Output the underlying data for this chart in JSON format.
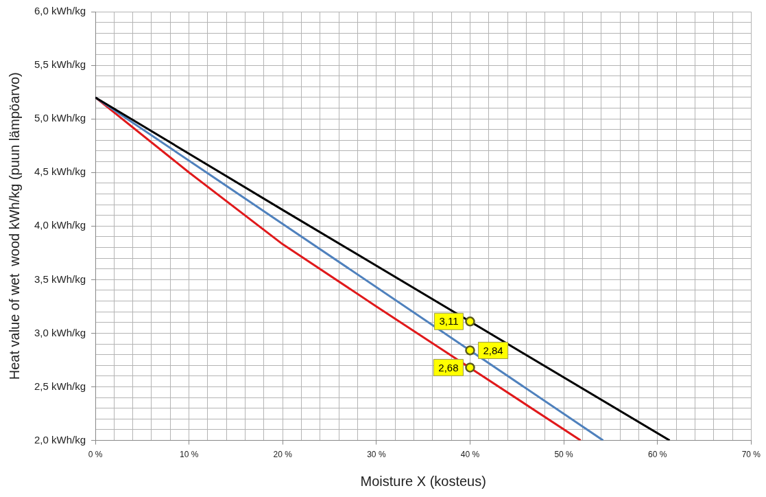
{
  "chart_data": {
    "type": "line",
    "xlabel": "Moisture X (kosteus)",
    "ylabel": "Heat value of wet  wood kWh/kg (puun lämpöarvo)",
    "xlim": [
      0,
      70
    ],
    "ylim": [
      2,
      6
    ],
    "xticks": [
      {
        "value": 0,
        "label": "0 %"
      },
      {
        "value": 2,
        "label": null
      },
      {
        "value": 4,
        "label": null
      },
      {
        "value": 6,
        "label": null
      },
      {
        "value": 8,
        "label": null
      },
      {
        "value": 10,
        "label": "10 %"
      },
      {
        "value": 12,
        "label": null
      },
      {
        "value": 14,
        "label": null
      },
      {
        "value": 16,
        "label": null
      },
      {
        "value": 18,
        "label": null
      },
      {
        "value": 20,
        "label": "20 %"
      },
      {
        "value": 22,
        "label": null
      },
      {
        "value": 24,
        "label": null
      },
      {
        "value": 26,
        "label": null
      },
      {
        "value": 28,
        "label": null
      },
      {
        "value": 30,
        "label": "30 %"
      },
      {
        "value": 32,
        "label": null
      },
      {
        "value": 34,
        "label": null
      },
      {
        "value": 36,
        "label": null
      },
      {
        "value": 38,
        "label": null
      },
      {
        "value": 40,
        "label": "40 %"
      },
      {
        "value": 42,
        "label": null
      },
      {
        "value": 44,
        "label": null
      },
      {
        "value": 46,
        "label": null
      },
      {
        "value": 48,
        "label": null
      },
      {
        "value": 50,
        "label": "50 %"
      },
      {
        "value": 52,
        "label": null
      },
      {
        "value": 54,
        "label": null
      },
      {
        "value": 56,
        "label": null
      },
      {
        "value": 58,
        "label": null
      },
      {
        "value": 60,
        "label": "60 %"
      },
      {
        "value": 62,
        "label": null
      },
      {
        "value": 64,
        "label": null
      },
      {
        "value": 66,
        "label": null
      },
      {
        "value": 68,
        "label": null
      },
      {
        "value": 70,
        "label": "70 %"
      }
    ],
    "yticks": [
      {
        "value": 2,
        "label": "2,0 kWh/kg"
      },
      {
        "value": 2.1,
        "label": null
      },
      {
        "value": 2.2,
        "label": null
      },
      {
        "value": 2.3,
        "label": null
      },
      {
        "value": 2.4,
        "label": null
      },
      {
        "value": 2.5,
        "label": "2,5 kWh/kg"
      },
      {
        "value": 2.6,
        "label": null
      },
      {
        "value": 2.7,
        "label": null
      },
      {
        "value": 2.8,
        "label": null
      },
      {
        "value": 2.9,
        "label": null
      },
      {
        "value": 3,
        "label": "3,0 kWh/kg"
      },
      {
        "value": 3.1,
        "label": null
      },
      {
        "value": 3.2,
        "label": null
      },
      {
        "value": 3.3,
        "label": null
      },
      {
        "value": 3.4,
        "label": null
      },
      {
        "value": 3.5,
        "label": "3,5 kWh/kg"
      },
      {
        "value": 3.6,
        "label": null
      },
      {
        "value": 3.7,
        "label": null
      },
      {
        "value": 3.8,
        "label": null
      },
      {
        "value": 3.9,
        "label": null
      },
      {
        "value": 4,
        "label": "4,0 kWh/kg"
      },
      {
        "value": 4.1,
        "label": null
      },
      {
        "value": 4.2,
        "label": null
      },
      {
        "value": 4.3,
        "label": null
      },
      {
        "value": 4.4,
        "label": null
      },
      {
        "value": 4.5,
        "label": "4,5 kWh/kg"
      },
      {
        "value": 4.6,
        "label": null
      },
      {
        "value": 4.7,
        "label": null
      },
      {
        "value": 4.8,
        "label": null
      },
      {
        "value": 4.9,
        "label": null
      },
      {
        "value": 5,
        "label": "5,0 kWh/kg"
      },
      {
        "value": 5.1,
        "label": null
      },
      {
        "value": 5.2,
        "label": null
      },
      {
        "value": 5.3,
        "label": null
      },
      {
        "value": 5.4,
        "label": null
      },
      {
        "value": 5.5,
        "label": "5,5 kWh/kg"
      },
      {
        "value": 5.6,
        "label": null
      },
      {
        "value": 5.7,
        "label": null
      },
      {
        "value": 5.8,
        "label": null
      },
      {
        "value": 5.9,
        "label": null
      },
      {
        "value": 6,
        "label": "6,0 kWh/kg"
      }
    ],
    "grid": true,
    "legend": false,
    "marker": "none",
    "line_style": "solid",
    "series": [
      {
        "color": "#000000",
        "x": [
          0,
          20,
          61.3
        ],
        "values": [
          5.2,
          4.15,
          2.0
        ]
      },
      {
        "color": "#4f81bd",
        "x": [
          0,
          20,
          54.2
        ],
        "values": [
          5.2,
          4.02,
          2.0
        ]
      },
      {
        "color": "#e0191b",
        "x": [
          0,
          10,
          20,
          30,
          51.8
        ],
        "values": [
          5.2,
          4.5,
          3.83,
          3.25,
          2.0
        ]
      },
      {
        "type": "scatter",
        "marker": "circle",
        "color": "#ffff00",
        "x": [
          40,
          40,
          40
        ],
        "values": [
          3.11,
          2.84,
          2.68
        ],
        "value_labels": [
          "3,11",
          "2,84",
          "2,68"
        ]
      }
    ]
  }
}
